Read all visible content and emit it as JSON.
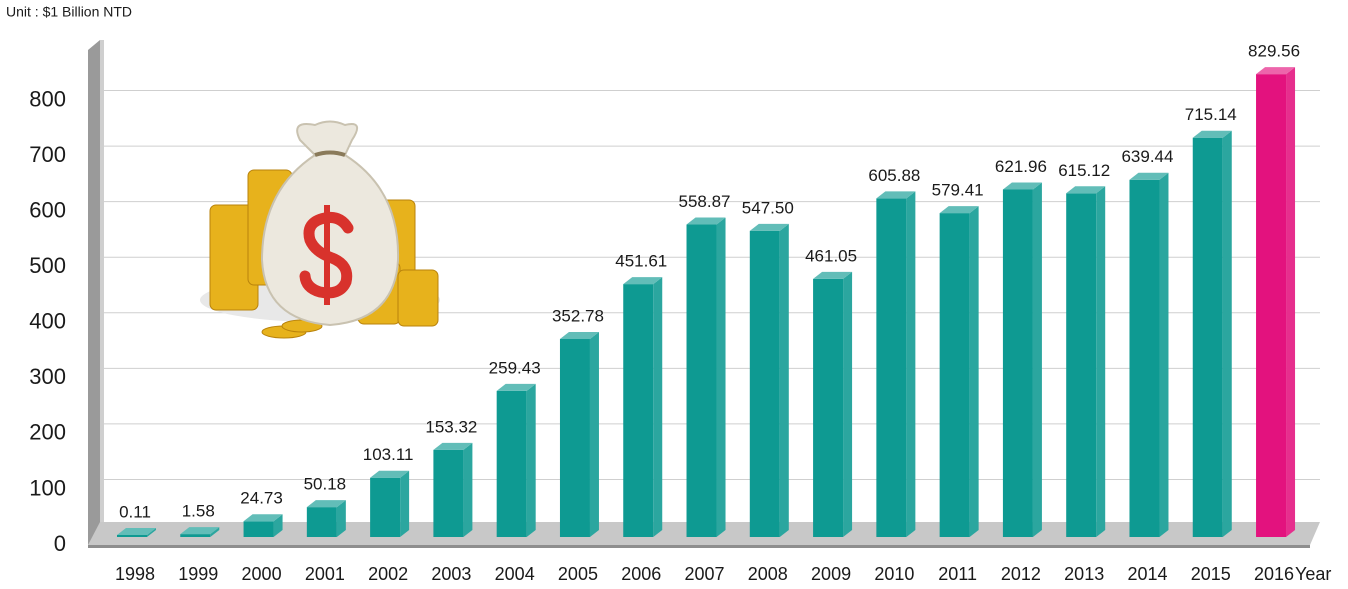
{
  "chart_data": {
    "type": "bar3d",
    "subtitle": "Unit : $1 Billion NTD",
    "x_label": "Year",
    "categories": [
      "1998",
      "1999",
      "2000",
      "2001",
      "2002",
      "2003",
      "2004",
      "2005",
      "2006",
      "2007",
      "2008",
      "2009",
      "2010",
      "2011",
      "2012",
      "2013",
      "2014",
      "2015",
      "2016"
    ],
    "values": [
      0.11,
      1.58,
      24.73,
      50.18,
      103.11,
      153.32,
      259.43,
      352.78,
      451.61,
      558.87,
      547.5,
      461.05,
      605.88,
      579.41,
      621.96,
      615.12,
      639.44,
      715.14,
      829.56
    ],
    "value_labels": [
      "0.11",
      "1.58",
      "24.73",
      "50.18",
      "103.11",
      "153.32",
      "259.43",
      "352.78",
      "451.61",
      "558.87",
      "547.50",
      "461.05",
      "605.88",
      "579.41",
      "621.96",
      "615.12",
      "639.44",
      "715.14",
      "829.56"
    ],
    "colors": [
      "#0e9a92",
      "#0e9a92",
      "#0e9a92",
      "#0e9a92",
      "#0e9a92",
      "#0e9a92",
      "#0e9a92",
      "#0e9a92",
      "#0e9a92",
      "#0e9a92",
      "#0e9a92",
      "#0e9a92",
      "#0e9a92",
      "#0e9a92",
      "#0e9a92",
      "#0e9a92",
      "#0e9a92",
      "#0e9a92",
      "#e3127e"
    ],
    "ylim": [
      0,
      900
    ],
    "yticks": [
      0,
      100,
      200,
      300,
      400,
      500,
      600,
      700,
      800
    ],
    "grid": true
  }
}
